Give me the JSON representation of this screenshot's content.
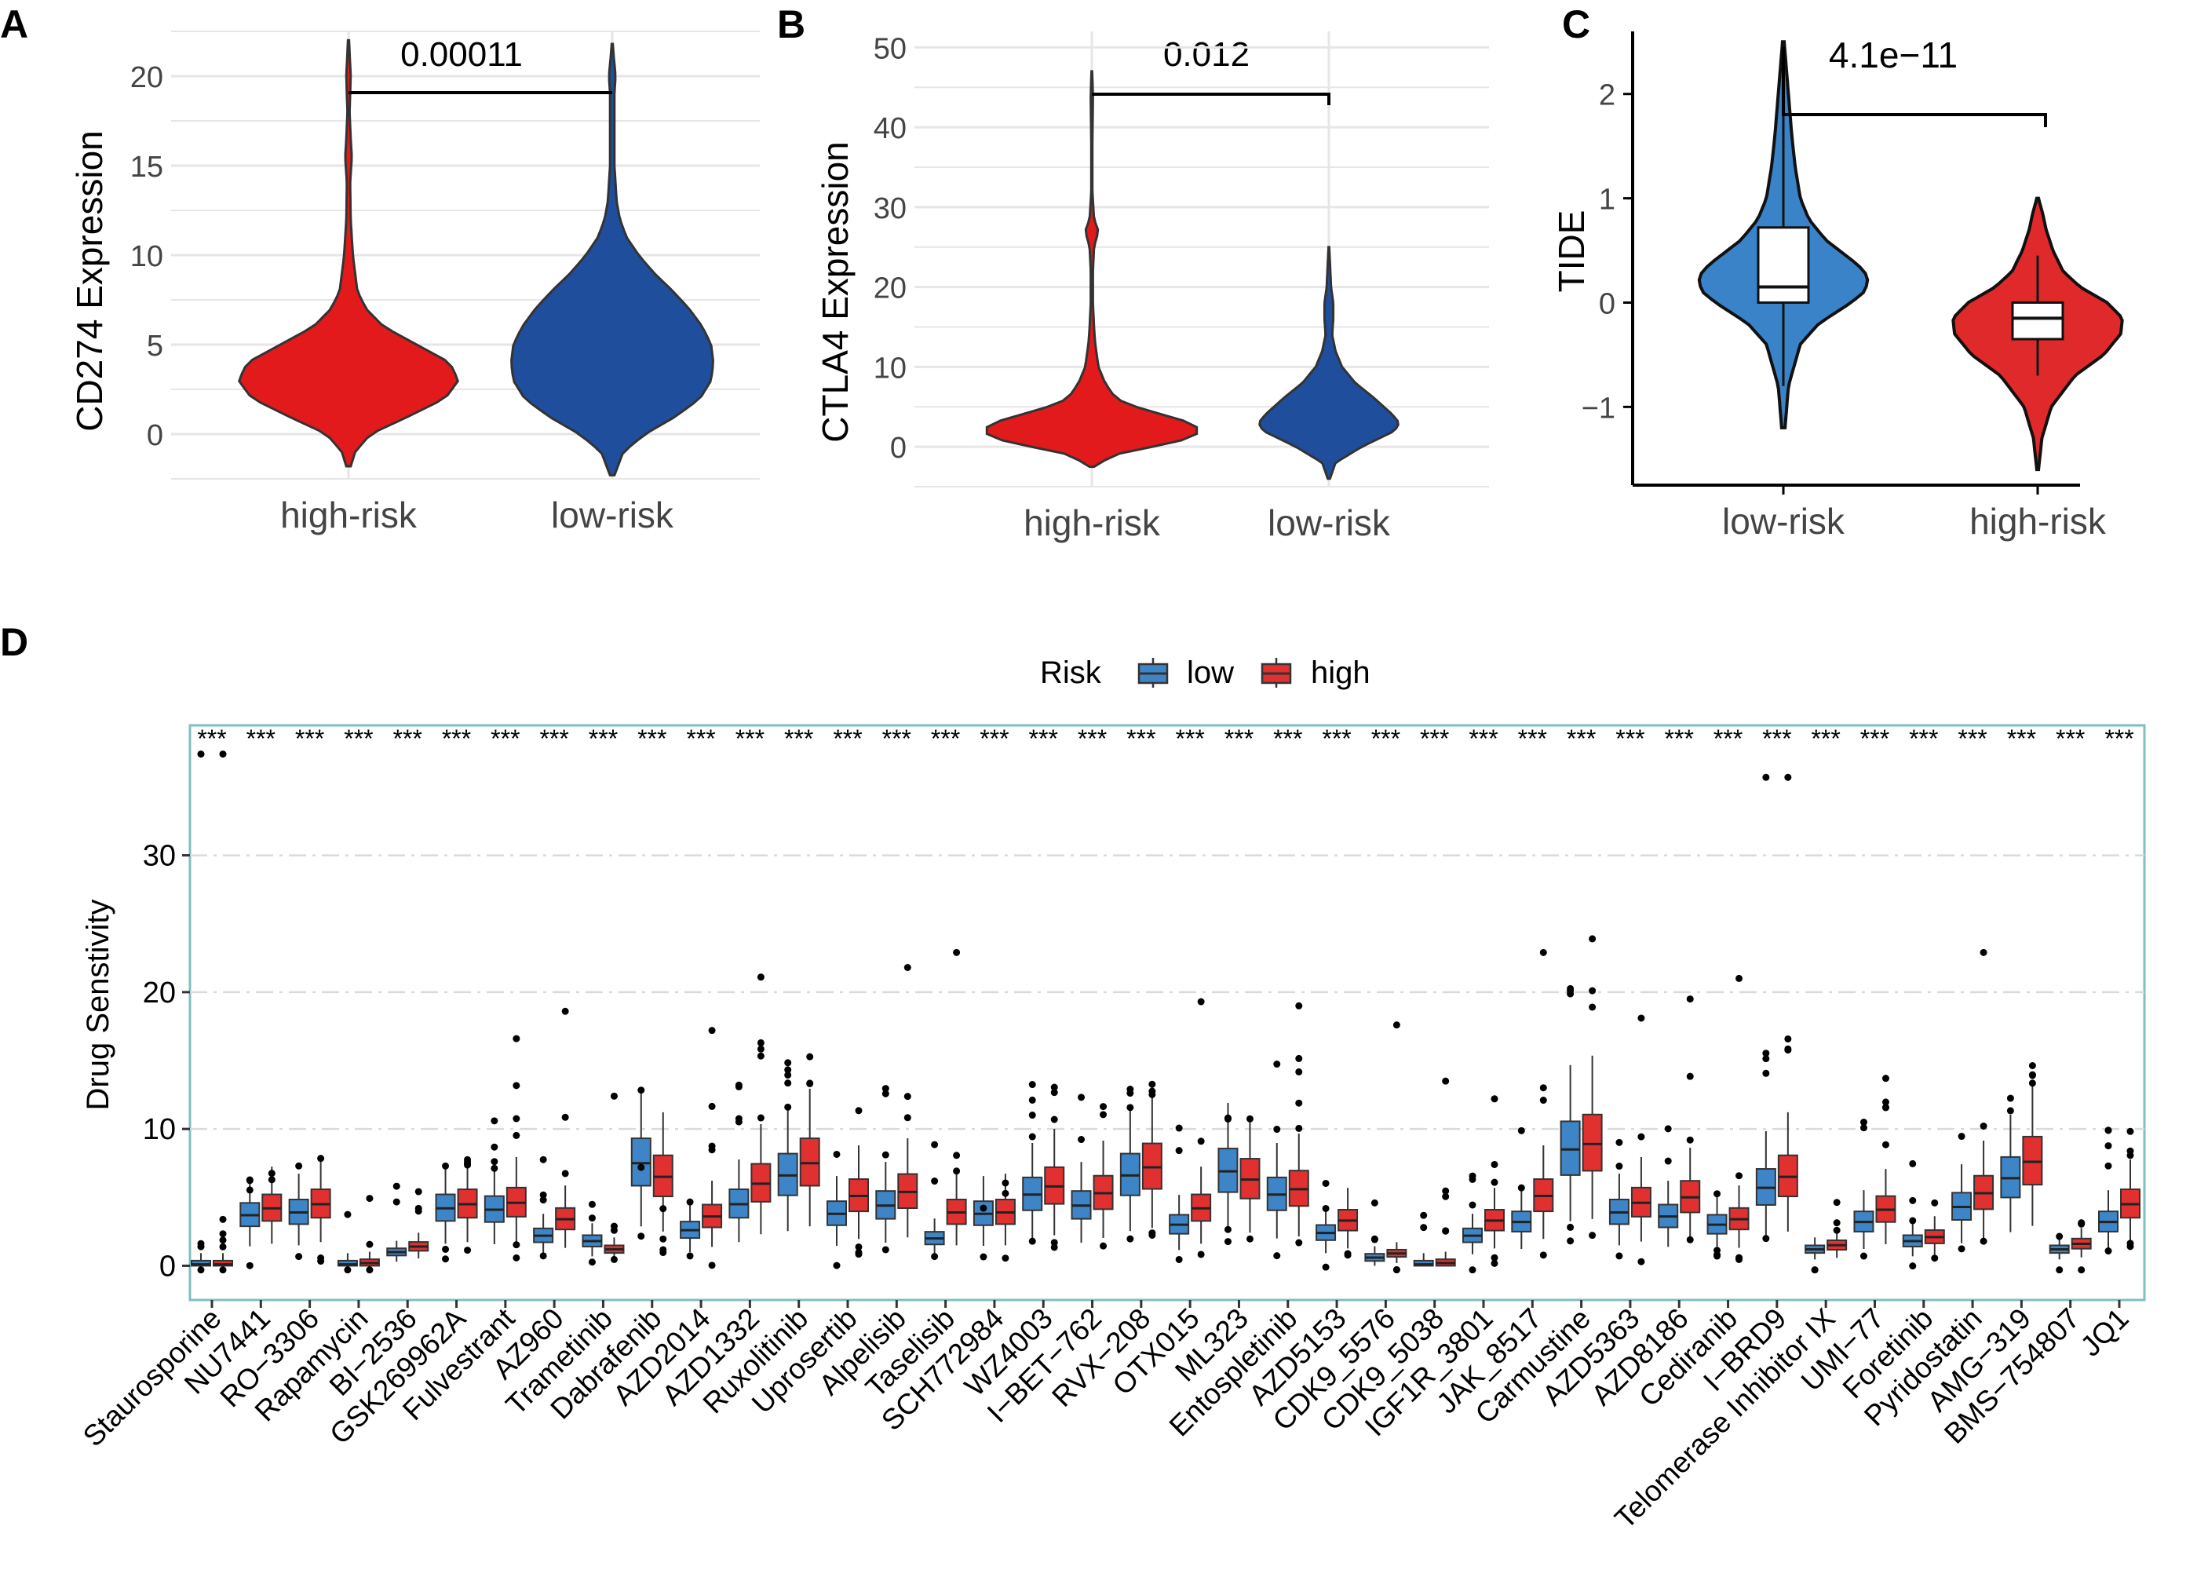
{
  "colors": {
    "red": "#e31a1c",
    "blue": "#1f4e9c",
    "tide_blue": "#3b83c8",
    "tide_red": "#e0292b",
    "box_low": "#3d85c6",
    "box_high": "#e03030",
    "grid": "#e6e6e6",
    "panel_border": "#7fbfbf"
  },
  "chart_data": [
    {
      "type": "violin",
      "panel_letter": "A",
      "ylabel": "CD274 Expression",
      "ylim": [
        -2.5,
        22.5
      ],
      "yticks": [
        0,
        5,
        10,
        15,
        20
      ],
      "categories": [
        "high-risk",
        "low-risk"
      ],
      "pvalue": "0.00011",
      "groups": [
        {
          "name": "high-risk",
          "color": "red",
          "min": -1.8,
          "max": 22.0,
          "density": [
            [
              -1.8,
              0.02
            ],
            [
              -1,
              0.06
            ],
            [
              0,
              0.2
            ],
            [
              1,
              0.55
            ],
            [
              2,
              0.88
            ],
            [
              3,
              1.0
            ],
            [
              4,
              0.92
            ],
            [
              5,
              0.62
            ],
            [
              6,
              0.32
            ],
            [
              7,
              0.16
            ],
            [
              8,
              0.08
            ],
            [
              9,
              0.06
            ],
            [
              10,
              0.04
            ],
            [
              11,
              0.03
            ],
            [
              12,
              0.02
            ],
            [
              14,
              0.015
            ],
            [
              15.5,
              0.03
            ],
            [
              16.5,
              0.02
            ],
            [
              18,
              0.01
            ],
            [
              20,
              0.02
            ],
            [
              22,
              0.005
            ]
          ]
        },
        {
          "name": "low-risk",
          "color": "blue",
          "min": -2.3,
          "max": 21.8,
          "density": [
            [
              -2.3,
              0.02
            ],
            [
              -1,
              0.1
            ],
            [
              0,
              0.3
            ],
            [
              1,
              0.58
            ],
            [
              2,
              0.8
            ],
            [
              3,
              0.9
            ],
            [
              4,
              0.92
            ],
            [
              5,
              0.9
            ],
            [
              6,
              0.82
            ],
            [
              7,
              0.7
            ],
            [
              8,
              0.55
            ],
            [
              9,
              0.38
            ],
            [
              10,
              0.24
            ],
            [
              11,
              0.13
            ],
            [
              12,
              0.07
            ],
            [
              13,
              0.04
            ],
            [
              15,
              0.02
            ],
            [
              17,
              0.02
            ],
            [
              19,
              0.02
            ],
            [
              20,
              0.03
            ],
            [
              21,
              0.015
            ],
            [
              21.8,
              0.005
            ]
          ]
        }
      ]
    },
    {
      "type": "violin",
      "panel_letter": "B",
      "ylabel": "CTLA4 Expression",
      "ylim": [
        -5,
        52
      ],
      "yticks": [
        0,
        10,
        20,
        30,
        40,
        50
      ],
      "categories": [
        "high-risk",
        "low-risk"
      ],
      "pvalue": "0.012",
      "groups": [
        {
          "name": "high-risk",
          "color": "red",
          "min": -2.5,
          "max": 47,
          "density": [
            [
              -2.5,
              0.02
            ],
            [
              -1,
              0.2
            ],
            [
              0,
              0.55
            ],
            [
              1,
              0.88
            ],
            [
              2,
              1.0
            ],
            [
              3,
              0.9
            ],
            [
              4,
              0.65
            ],
            [
              5,
              0.4
            ],
            [
              6,
              0.22
            ],
            [
              8,
              0.12
            ],
            [
              10,
              0.06
            ],
            [
              13,
              0.03
            ],
            [
              15,
              0.02
            ],
            [
              18,
              0.01
            ],
            [
              22,
              0.01
            ],
            [
              25,
              0.02
            ],
            [
              27,
              0.06
            ],
            [
              28.5,
              0.02
            ],
            [
              32,
              0.005
            ],
            [
              38,
              0.005
            ],
            [
              44,
              0.01
            ],
            [
              47,
              0.003
            ]
          ]
        },
        {
          "name": "low-risk",
          "color": "blue",
          "min": -4,
          "max": 25,
          "density": [
            [
              -4,
              0.01
            ],
            [
              -2,
              0.06
            ],
            [
              0,
              0.3
            ],
            [
              2,
              0.6
            ],
            [
              3,
              0.64
            ],
            [
              4,
              0.58
            ],
            [
              6,
              0.42
            ],
            [
              8,
              0.24
            ],
            [
              10,
              0.12
            ],
            [
              12,
              0.06
            ],
            [
              14,
              0.03
            ],
            [
              16,
              0.04
            ],
            [
              18,
              0.04
            ],
            [
              20,
              0.02
            ],
            [
              23,
              0.01
            ],
            [
              25,
              0.003
            ]
          ]
        }
      ]
    },
    {
      "type": "violin-box",
      "panel_letter": "C",
      "ylabel": "TIDE",
      "ylim": [
        -1.75,
        2.6
      ],
      "yticks": [
        -1,
        0,
        1,
        2
      ],
      "categories": [
        "low-risk",
        "high-risk"
      ],
      "pvalue": "4.1e−11",
      "groups": [
        {
          "name": "low-risk",
          "color": "tide_blue",
          "min": -1.2,
          "max": 2.5,
          "box": {
            "q1": 0.0,
            "median": 0.15,
            "q3": 0.72,
            "wlo": -0.8,
            "whi": 1.8
          },
          "density": [
            [
              -1.2,
              0.02
            ],
            [
              -0.8,
              0.06
            ],
            [
              -0.4,
              0.2
            ],
            [
              -0.2,
              0.42
            ],
            [
              0,
              0.8
            ],
            [
              0.1,
              0.95
            ],
            [
              0.2,
              1.0
            ],
            [
              0.3,
              0.96
            ],
            [
              0.4,
              0.82
            ],
            [
              0.6,
              0.5
            ],
            [
              0.8,
              0.3
            ],
            [
              1.0,
              0.2
            ],
            [
              1.3,
              0.14
            ],
            [
              1.6,
              0.1
            ],
            [
              1.9,
              0.07
            ],
            [
              2.1,
              0.05
            ],
            [
              2.3,
              0.03
            ],
            [
              2.5,
              0.01
            ]
          ]
        },
        {
          "name": "high-risk",
          "color": "tide_red",
          "min": -1.6,
          "max": 1.0,
          "box": {
            "q1": -0.35,
            "median": -0.15,
            "q3": 0.0,
            "wlo": -0.7,
            "whi": 0.45
          },
          "density": [
            [
              -1.6,
              0.01
            ],
            [
              -1.3,
              0.05
            ],
            [
              -1.0,
              0.16
            ],
            [
              -0.7,
              0.44
            ],
            [
              -0.5,
              0.78
            ],
            [
              -0.3,
              0.98
            ],
            [
              -0.15,
              1.0
            ],
            [
              0,
              0.82
            ],
            [
              0.15,
              0.5
            ],
            [
              0.3,
              0.3
            ],
            [
              0.5,
              0.18
            ],
            [
              0.7,
              0.1
            ],
            [
              0.85,
              0.06
            ],
            [
              1.0,
              0.01
            ]
          ]
        }
      ]
    },
    {
      "type": "box",
      "panel_letter": "D",
      "ylabel": "Drug Senstivity",
      "ylim": [
        -2.5,
        39.5
      ],
      "yticks": [
        0,
        10,
        20,
        30
      ],
      "legend": {
        "title": "Risk",
        "entries": [
          "low",
          "high"
        ]
      },
      "significance": "***",
      "categories": [
        "Staurosporine",
        "NU7441",
        "RO−3306",
        "Rapamycin",
        "BI−2536",
        "GSK269962A",
        "Fulvestrant",
        "AZ960",
        "Trametinib",
        "Dabrafenib",
        "AZD2014",
        "AZD1332",
        "Ruxolitinib",
        "Uprosertib",
        "Alpelisib",
        "Taselisib",
        "SCH772984",
        "WZ4003",
        "I−BET−762",
        "RVX−208",
        "OTX015",
        "ML323",
        "Entospletinib",
        "AZD5153",
        "CDK9_5576",
        "CDK9_5038",
        "IGF1R_3801",
        "JAK_8517",
        "Carmustine",
        "AZD5363",
        "AZD8186",
        "Cediranib",
        "I−BRD9",
        "Telomerase Inhibitor IX",
        "UMI−77",
        "Foretinib",
        "Pyridostatin",
        "AMG−319",
        "BMS−754807",
        "JQ1"
      ],
      "series": [
        {
          "name": "low",
          "medians": [
            0.1,
            3.7,
            3.9,
            0.1,
            1.0,
            4.2,
            4.1,
            2.2,
            1.8,
            7.5,
            2.6,
            4.5,
            6.6,
            3.8,
            4.4,
            2.0,
            3.8,
            5.2,
            4.4,
            6.6,
            3.0,
            6.9,
            5.2,
            2.4,
            0.6,
            0.1,
            2.2,
            3.2,
            8.5,
            3.9,
            3.6,
            3.0,
            5.7,
            1.2,
            3.2,
            1.8,
            4.3,
            6.4,
            1.2,
            3.2
          ]
        },
        {
          "name": "high",
          "medians": [
            0.1,
            4.2,
            4.5,
            0.2,
            1.4,
            4.5,
            4.6,
            3.4,
            1.2,
            6.5,
            3.6,
            6.0,
            7.5,
            5.1,
            5.4,
            3.9,
            3.9,
            5.8,
            5.3,
            7.2,
            4.2,
            6.3,
            5.6,
            3.3,
            0.9,
            0.2,
            3.3,
            5.1,
            8.9,
            4.6,
            5.0,
            3.4,
            6.5,
            1.5,
            4.1,
            2.1,
            5.3,
            7.6,
            1.6,
            4.5
          ]
        }
      ]
    }
  ]
}
